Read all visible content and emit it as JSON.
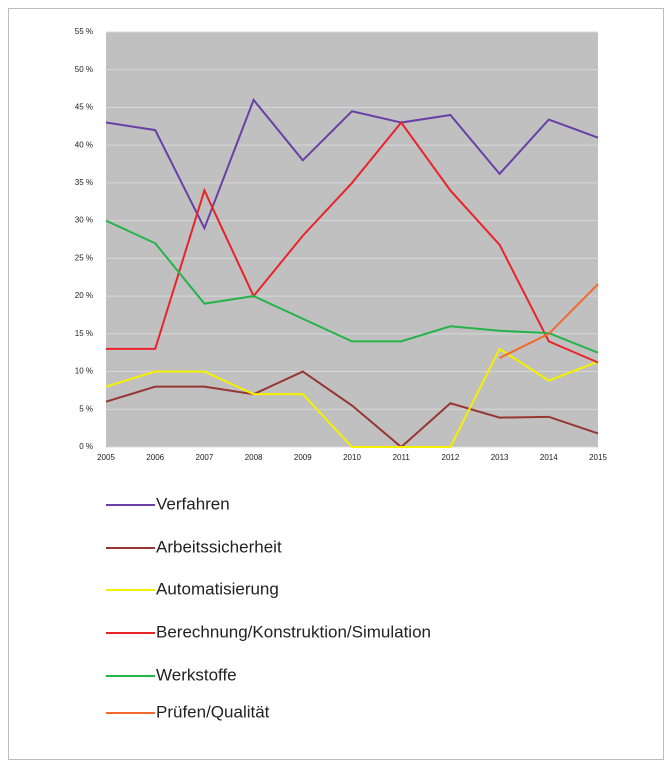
{
  "chart_data": {
    "type": "line",
    "categories": [
      "2005",
      "2006",
      "2007",
      "2008",
      "2009",
      "2010",
      "2011",
      "2012",
      "2013",
      "2014",
      "2015"
    ],
    "series": [
      {
        "name": "Verfahren",
        "color": "#6a3fa6",
        "values": [
          43,
          42,
          29,
          46,
          38,
          44.5,
          43,
          44,
          36.2,
          43.4,
          41
        ]
      },
      {
        "name": "Arbeitssicherheit",
        "color": "#953735",
        "values": [
          6,
          8,
          8,
          7,
          10,
          5.5,
          0,
          5.8,
          3.9,
          4,
          1.8
        ]
      },
      {
        "name": "Automatisierung",
        "color": "#f5f000",
        "values": [
          8,
          10,
          10,
          7,
          7,
          0,
          0,
          0,
          13,
          8.8,
          11.3
        ]
      },
      {
        "name": "Berechnung/Konstruktion/Simulation",
        "color": "#e8242a",
        "values": [
          13,
          13,
          34,
          20,
          28,
          35,
          43,
          34,
          26.8,
          14,
          11.2
        ]
      },
      {
        "name": "Werkstoffe",
        "color": "#25b34a",
        "values": [
          30,
          27,
          19,
          20,
          17,
          14,
          14,
          16,
          15.4,
          15.1,
          12.5
        ]
      },
      {
        "name": "Prüfen/Qualität",
        "color": "#ef6a2c",
        "values": [
          null,
          null,
          null,
          null,
          null,
          null,
          null,
          null,
          11.8,
          15,
          21.6
        ]
      }
    ],
    "ylim": [
      0,
      55
    ],
    "yticks": [
      {
        "value": 0,
        "label": "0 %"
      },
      {
        "value": 5,
        "label": "5 %"
      },
      {
        "value": 10,
        "label": "10 %"
      },
      {
        "value": 15,
        "label": "15 %"
      },
      {
        "value": 20,
        "label": "20 %"
      },
      {
        "value": 25,
        "label": "25 %"
      },
      {
        "value": 30,
        "label": "30 %"
      },
      {
        "value": 35,
        "label": "35 %"
      },
      {
        "value": 40,
        "label": "40 %"
      },
      {
        "value": 45,
        "label": "45 %"
      },
      {
        "value": 50,
        "label": "50 %"
      },
      {
        "value": 55,
        "label": "55 %"
      }
    ],
    "grid": true
  }
}
